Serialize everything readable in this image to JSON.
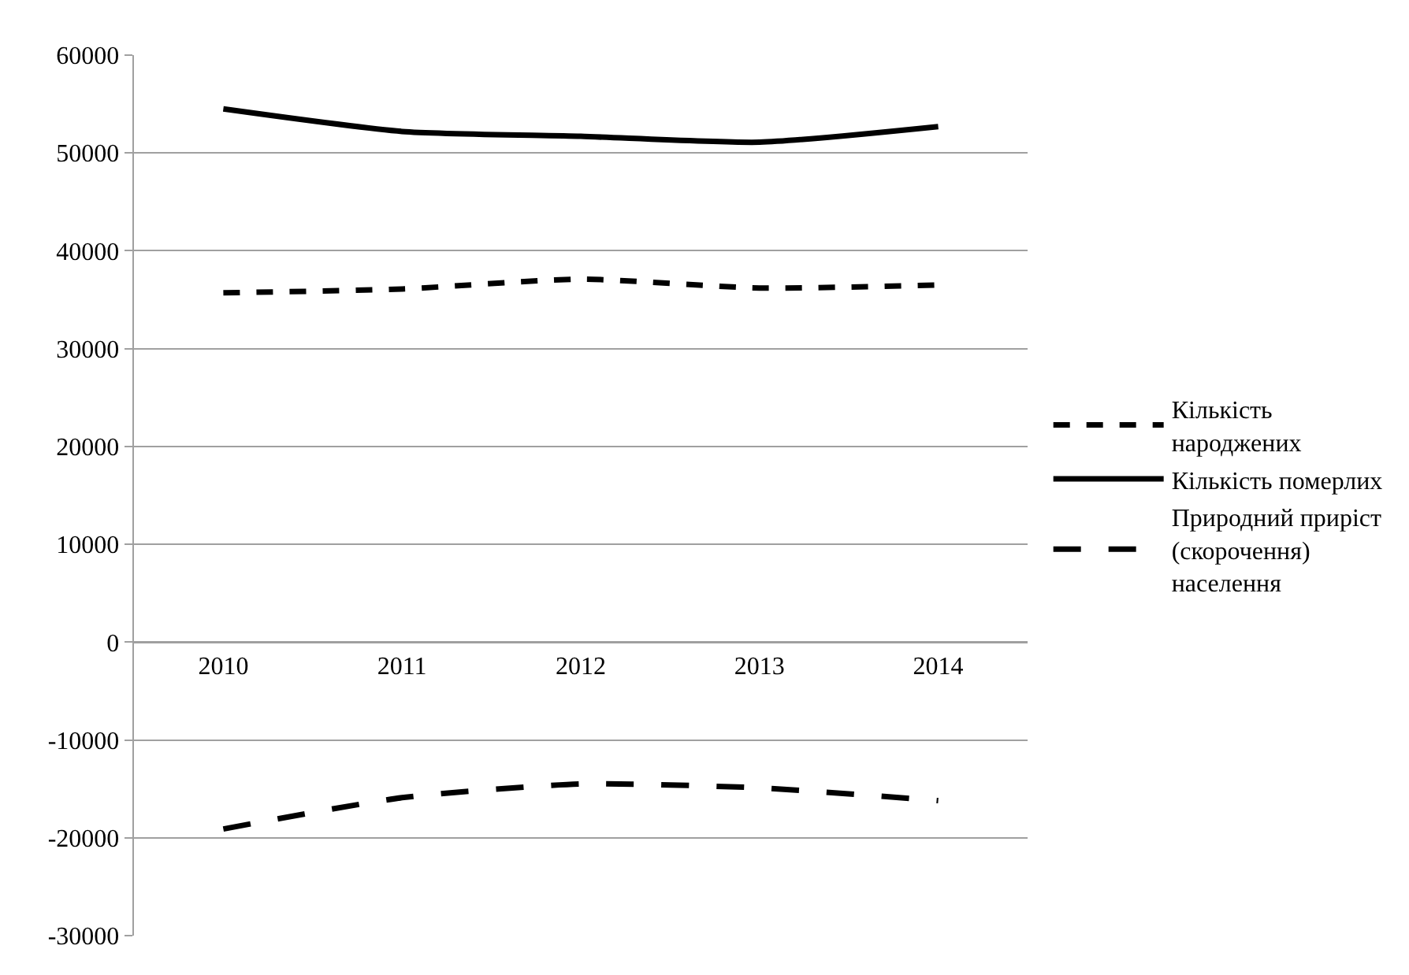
{
  "chart_data": {
    "type": "line",
    "categories": [
      "2010",
      "2011",
      "2012",
      "2013",
      "2014"
    ],
    "series": [
      {
        "name": "Кількість народжених",
        "color": "#000000",
        "line_style": "dashed",
        "values": [
          35700,
          36100,
          37100,
          36200,
          36500
        ]
      },
      {
        "name": "Кількість померлих",
        "color": "#000000",
        "line_style": "solid",
        "values": [
          54500,
          52200,
          51700,
          51100,
          52700
        ]
      },
      {
        "name": "Природний приріст (скорочення) населення",
        "color": "#000000",
        "line_style": "longdash",
        "values": [
          -19100,
          -15900,
          -14500,
          -14900,
          -16200
        ]
      }
    ],
    "ylim": [
      -30000,
      60000
    ],
    "yticks": [
      -30000,
      -20000,
      -10000,
      0,
      10000,
      20000,
      30000,
      40000,
      50000,
      60000
    ],
    "grid": "y",
    "legend": "right",
    "marker": "none"
  }
}
